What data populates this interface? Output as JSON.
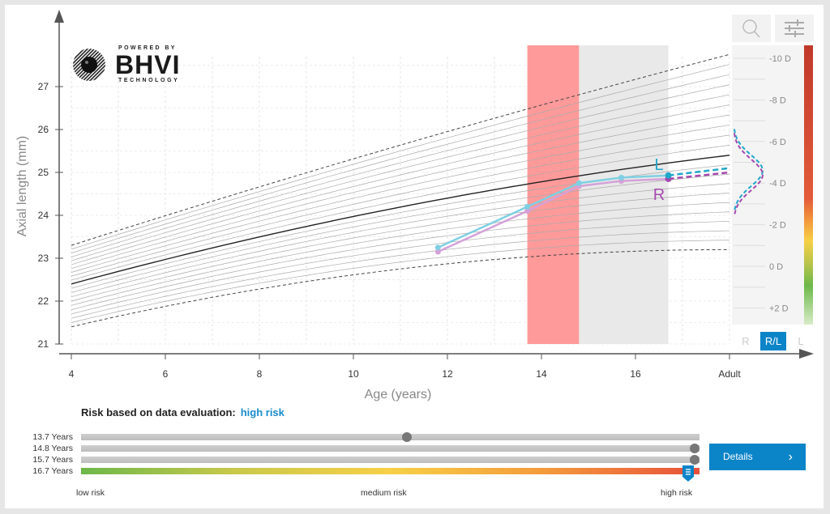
{
  "logo": {
    "line1": "POWERED BY",
    "line2": "BHVI",
    "line3": "TECHNOLOGY"
  },
  "toolbar": {
    "zoom_icon": "magnifier-icon",
    "settings_icon": "sliders-icon"
  },
  "chart_data": {
    "type": "line",
    "xlabel": "Age (years)",
    "ylabel": "Axial length (mm)",
    "x_ticks": [
      "4",
      "6",
      "8",
      "10",
      "12",
      "14",
      "16",
      "Adult"
    ],
    "x_tick_values": [
      4,
      6,
      8,
      10,
      12,
      14,
      16,
      18
    ],
    "y_ticks": [
      "21",
      "22",
      "23",
      "24",
      "25",
      "26",
      "27"
    ],
    "xlim": [
      4,
      18
    ],
    "ylim": [
      21,
      27.6
    ],
    "grid": true,
    "reference_curves": {
      "upper_dashed": {
        "start": 23.3,
        "end": 27.75
      },
      "median": {
        "start": 22.4,
        "end": 25.4
      },
      "lower_dashed": {
        "start": 21.4,
        "end": 23.2
      }
    },
    "bands": [
      {
        "from": 13.7,
        "to": 14.8,
        "color": "#ff9a9a"
      },
      {
        "from": 14.8,
        "to": 16.7,
        "color": "#e9e9e9"
      }
    ],
    "series": [
      {
        "name": "L",
        "color": "#7fd0e2",
        "projection_color": "#1fa7c9",
        "x": [
          11.8,
          13.7,
          14.8,
          15.7,
          16.7
        ],
        "y": [
          23.25,
          24.2,
          24.75,
          24.88,
          24.93
        ],
        "projection": {
          "x": [
            16.7,
            18
          ],
          "y": [
            24.93,
            25.1
          ]
        }
      },
      {
        "name": "R",
        "color": "#d4a2d8",
        "projection_color": "#a64aae",
        "x": [
          11.8,
          13.7,
          14.8,
          15.7,
          16.7
        ],
        "y": [
          23.15,
          24.1,
          24.68,
          24.8,
          24.85
        ],
        "projection": {
          "x": [
            16.7,
            18
          ],
          "y": [
            24.85,
            25.0
          ]
        }
      }
    ]
  },
  "refraction_panel": {
    "ticks": [
      "-10 D",
      "-8 D",
      "-6 D",
      "-4 D",
      "-2 D",
      "0 D",
      "+2 D"
    ],
    "tick_values": [
      -10,
      -8,
      -6,
      -4,
      -2,
      0,
      2
    ],
    "L_peak_D": -4.6,
    "R_peak_D": -4.4,
    "eye_buttons": [
      "R",
      "R/L",
      "L"
    ],
    "selected": "R/L"
  },
  "risk": {
    "title": "Risk based on data evaluation:",
    "value": "high risk",
    "rows": [
      {
        "label": "13.7 Years",
        "level": 0.527
      },
      {
        "label": "14.8 Years",
        "level": 0.992
      },
      {
        "label": "15.7 Years",
        "level": 0.992
      },
      {
        "label": "16.7 Years",
        "level": 0.982
      }
    ],
    "scale": [
      "low risk",
      "medium risk",
      "high risk"
    ],
    "details_label": "Details"
  }
}
